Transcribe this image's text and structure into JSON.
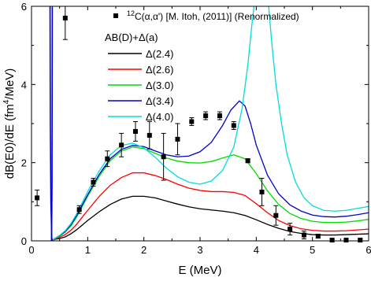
{
  "chart_data": {
    "type": "line",
    "xlabel": "E (MeV)",
    "ylabel_parts": [
      "dB(E0)/dE (fm",
      "4",
      "/MeV)"
    ],
    "xlim": [
      0,
      6
    ],
    "ylim": [
      0,
      6
    ],
    "xticks": [
      0,
      1,
      2,
      3,
      4,
      5,
      6
    ],
    "yticks": [
      0,
      2,
      4,
      6
    ],
    "xtick_labels": [
      "0",
      "1",
      "2",
      "3",
      "4",
      "5",
      "6"
    ],
    "ytick_labels": [
      "0",
      "2",
      "4",
      "6"
    ],
    "grid": false,
    "legend": {
      "placement": "upper-right",
      "experiment_label": "12C(α,α') [M. Itoh, (2011)] (Renormalized)",
      "experiment_sup": "12",
      "experiment_text": "C(α,α') [M. Itoh, (2011)] (Renormalized)",
      "theory_heading": "AB(D)+Δ(a)"
    },
    "experiment": {
      "name": "12C(α,α') [M. Itoh, (2011)] (Renormalized)",
      "color": "#000000",
      "points": [
        {
          "x": 0.1,
          "y": 1.1,
          "err": 0.2
        },
        {
          "x": 0.6,
          "y": 5.7,
          "err": 0.55
        },
        {
          "x": 0.85,
          "y": 0.8,
          "err": 0.1
        },
        {
          "x": 1.1,
          "y": 1.5,
          "err": 0.1
        },
        {
          "x": 1.35,
          "y": 2.1,
          "err": 0.2
        },
        {
          "x": 1.6,
          "y": 2.45,
          "err": 0.3
        },
        {
          "x": 1.85,
          "y": 2.8,
          "err": 0.25
        },
        {
          "x": 2.1,
          "y": 2.7,
          "err": 0.35
        },
        {
          "x": 2.35,
          "y": 2.15,
          "err": 0.6
        },
        {
          "x": 2.6,
          "y": 2.6,
          "err": 0.4
        },
        {
          "x": 2.85,
          "y": 3.05,
          "err": 0.1
        },
        {
          "x": 3.1,
          "y": 3.2,
          "err": 0.1
        },
        {
          "x": 3.35,
          "y": 3.2,
          "err": 0.1
        },
        {
          "x": 3.6,
          "y": 2.95,
          "err": 0.1
        },
        {
          "x": 3.85,
          "y": 2.05,
          "err": 0.05
        },
        {
          "x": 4.1,
          "y": 1.25,
          "err": 0.35
        },
        {
          "x": 4.35,
          "y": 0.65,
          "err": 0.25
        },
        {
          "x": 4.6,
          "y": 0.3,
          "err": 0.15
        },
        {
          "x": 4.85,
          "y": 0.15,
          "err": 0.1
        },
        {
          "x": 5.1,
          "y": 0.12,
          "err": 0.05
        },
        {
          "x": 5.35,
          "y": 0.02,
          "err": 0.02
        },
        {
          "x": 5.6,
          "y": 0.02,
          "err": 0.02
        },
        {
          "x": 5.85,
          "y": 0.02,
          "err": 0.02
        }
      ]
    },
    "series": [
      {
        "name": "Δ(2.4)",
        "color": "#000000",
        "points": [
          [
            0.36,
            0
          ],
          [
            0.38,
            0.02
          ],
          [
            0.42,
            0.04
          ],
          [
            0.5,
            0.06
          ],
          [
            0.6,
            0.1
          ],
          [
            0.7,
            0.18
          ],
          [
            0.8,
            0.28
          ],
          [
            0.9,
            0.4
          ],
          [
            1.0,
            0.52
          ],
          [
            1.2,
            0.74
          ],
          [
            1.4,
            0.93
          ],
          [
            1.6,
            1.07
          ],
          [
            1.8,
            1.14
          ],
          [
            2.0,
            1.14
          ],
          [
            2.2,
            1.1
          ],
          [
            2.4,
            1.02
          ],
          [
            2.6,
            0.94
          ],
          [
            2.8,
            0.87
          ],
          [
            3.0,
            0.82
          ],
          [
            3.2,
            0.79
          ],
          [
            3.4,
            0.76
          ],
          [
            3.6,
            0.72
          ],
          [
            3.8,
            0.65
          ],
          [
            4.0,
            0.54
          ],
          [
            4.2,
            0.42
          ],
          [
            4.4,
            0.32
          ],
          [
            4.6,
            0.24
          ],
          [
            4.8,
            0.19
          ],
          [
            5.0,
            0.16
          ],
          [
            5.2,
            0.15
          ],
          [
            5.4,
            0.15
          ],
          [
            5.6,
            0.16
          ],
          [
            5.8,
            0.17
          ],
          [
            6.0,
            0.18
          ]
        ]
      },
      {
        "name": "Δ(2.6)",
        "color": "#ff0000",
        "points": [
          [
            0.36,
            0
          ],
          [
            0.38,
            0.02
          ],
          [
            0.42,
            0.05
          ],
          [
            0.5,
            0.09
          ],
          [
            0.6,
            0.16
          ],
          [
            0.7,
            0.27
          ],
          [
            0.8,
            0.42
          ],
          [
            0.9,
            0.6
          ],
          [
            1.0,
            0.78
          ],
          [
            1.2,
            1.13
          ],
          [
            1.4,
            1.42
          ],
          [
            1.6,
            1.62
          ],
          [
            1.8,
            1.74
          ],
          [
            2.0,
            1.74
          ],
          [
            2.2,
            1.67
          ],
          [
            2.4,
            1.57
          ],
          [
            2.6,
            1.45
          ],
          [
            2.8,
            1.35
          ],
          [
            3.0,
            1.29
          ],
          [
            3.2,
            1.26
          ],
          [
            3.4,
            1.26
          ],
          [
            3.6,
            1.24
          ],
          [
            3.8,
            1.16
          ],
          [
            4.0,
            0.95
          ],
          [
            4.2,
            0.72
          ],
          [
            4.4,
            0.52
          ],
          [
            4.6,
            0.39
          ],
          [
            4.8,
            0.31
          ],
          [
            5.0,
            0.27
          ],
          [
            5.2,
            0.25
          ],
          [
            5.4,
            0.25
          ],
          [
            5.6,
            0.26
          ],
          [
            5.8,
            0.28
          ],
          [
            6.0,
            0.3
          ]
        ]
      },
      {
        "name": "Δ(3.0)",
        "color": "#00dd00",
        "points": [
          [
            0.36,
            0
          ],
          [
            0.38,
            0.03
          ],
          [
            0.42,
            0.06
          ],
          [
            0.5,
            0.12
          ],
          [
            0.6,
            0.22
          ],
          [
            0.7,
            0.38
          ],
          [
            0.8,
            0.6
          ],
          [
            0.9,
            0.87
          ],
          [
            1.0,
            1.14
          ],
          [
            1.2,
            1.64
          ],
          [
            1.4,
            2.05
          ],
          [
            1.6,
            2.3
          ],
          [
            1.8,
            2.4
          ],
          [
            2.0,
            2.36
          ],
          [
            2.2,
            2.24
          ],
          [
            2.4,
            2.12
          ],
          [
            2.6,
            2.04
          ],
          [
            2.8,
            2.0
          ],
          [
            3.0,
            1.99
          ],
          [
            3.2,
            2.03
          ],
          [
            3.4,
            2.12
          ],
          [
            3.6,
            2.2
          ],
          [
            3.8,
            2.1
          ],
          [
            4.0,
            1.72
          ],
          [
            4.2,
            1.28
          ],
          [
            4.4,
            0.93
          ],
          [
            4.6,
            0.7
          ],
          [
            4.8,
            0.57
          ],
          [
            5.0,
            0.5
          ],
          [
            5.2,
            0.47
          ],
          [
            5.4,
            0.47
          ],
          [
            5.6,
            0.48
          ],
          [
            5.8,
            0.51
          ],
          [
            6.0,
            0.55
          ]
        ]
      },
      {
        "name": "Δ(3.4)",
        "color": "#0000cc",
        "points": [
          [
            0.36,
            0
          ],
          [
            0.38,
            0.03
          ],
          [
            0.42,
            0.07
          ],
          [
            0.5,
            0.13
          ],
          [
            0.6,
            0.24
          ],
          [
            0.7,
            0.41
          ],
          [
            0.8,
            0.64
          ],
          [
            0.9,
            0.91
          ],
          [
            1.0,
            1.18
          ],
          [
            1.2,
            1.69
          ],
          [
            1.4,
            2.1
          ],
          [
            1.6,
            2.34
          ],
          [
            1.8,
            2.44
          ],
          [
            2.0,
            2.41
          ],
          [
            2.2,
            2.3
          ],
          [
            2.4,
            2.2
          ],
          [
            2.6,
            2.15
          ],
          [
            2.8,
            2.17
          ],
          [
            3.0,
            2.28
          ],
          [
            3.2,
            2.52
          ],
          [
            3.4,
            2.95
          ],
          [
            3.55,
            3.35
          ],
          [
            3.7,
            3.58
          ],
          [
            3.8,
            3.45
          ],
          [
            3.9,
            3.0
          ],
          [
            4.0,
            2.45
          ],
          [
            4.2,
            1.68
          ],
          [
            4.4,
            1.2
          ],
          [
            4.6,
            0.92
          ],
          [
            4.8,
            0.76
          ],
          [
            5.0,
            0.66
          ],
          [
            5.2,
            0.62
          ],
          [
            5.4,
            0.61
          ],
          [
            5.6,
            0.63
          ],
          [
            5.8,
            0.67
          ],
          [
            6.0,
            0.72
          ]
        ]
      },
      {
        "name": "Δ(4.0)",
        "color": "#00dddd",
        "points": [
          [
            0.36,
            0
          ],
          [
            0.38,
            0.03
          ],
          [
            0.42,
            0.07
          ],
          [
            0.5,
            0.14
          ],
          [
            0.6,
            0.26
          ],
          [
            0.7,
            0.44
          ],
          [
            0.8,
            0.68
          ],
          [
            0.9,
            0.97
          ],
          [
            1.0,
            1.26
          ],
          [
            1.2,
            1.78
          ],
          [
            1.4,
            2.2
          ],
          [
            1.6,
            2.44
          ],
          [
            1.8,
            2.5
          ],
          [
            2.0,
            2.38
          ],
          [
            2.2,
            2.14
          ],
          [
            2.4,
            1.86
          ],
          [
            2.6,
            1.64
          ],
          [
            2.8,
            1.5
          ],
          [
            3.0,
            1.45
          ],
          [
            3.2,
            1.53
          ],
          [
            3.4,
            1.8
          ],
          [
            3.6,
            2.4
          ],
          [
            3.75,
            3.4
          ],
          [
            3.85,
            4.5
          ],
          [
            3.92,
            5.5
          ],
          [
            3.96,
            6.0
          ]
        ]
      },
      {
        "name": "",
        "color": "#00dddd",
        "points": [
          [
            4.22,
            6.0
          ],
          [
            4.28,
            5.0
          ],
          [
            4.35,
            4.0
          ],
          [
            4.45,
            3.0
          ],
          [
            4.55,
            2.2
          ],
          [
            4.7,
            1.5
          ],
          [
            4.85,
            1.1
          ],
          [
            5.0,
            0.9
          ],
          [
            5.2,
            0.78
          ],
          [
            5.4,
            0.76
          ],
          [
            5.6,
            0.78
          ],
          [
            5.8,
            0.83
          ],
          [
            6.0,
            0.88
          ]
        ]
      }
    ],
    "spike": {
      "color": "#0000cc",
      "points": [
        [
          0.33,
          6.0
        ],
        [
          0.335,
          3.0
        ],
        [
          0.345,
          1.0
        ],
        [
          0.355,
          0.4
        ],
        [
          0.36,
          0.1
        ],
        [
          0.365,
          0.0
        ]
      ],
      "points2": [
        [
          0.355,
          0.0
        ],
        [
          0.36,
          0.5
        ],
        [
          0.365,
          1.5
        ],
        [
          0.37,
          6.0
        ]
      ]
    }
  }
}
